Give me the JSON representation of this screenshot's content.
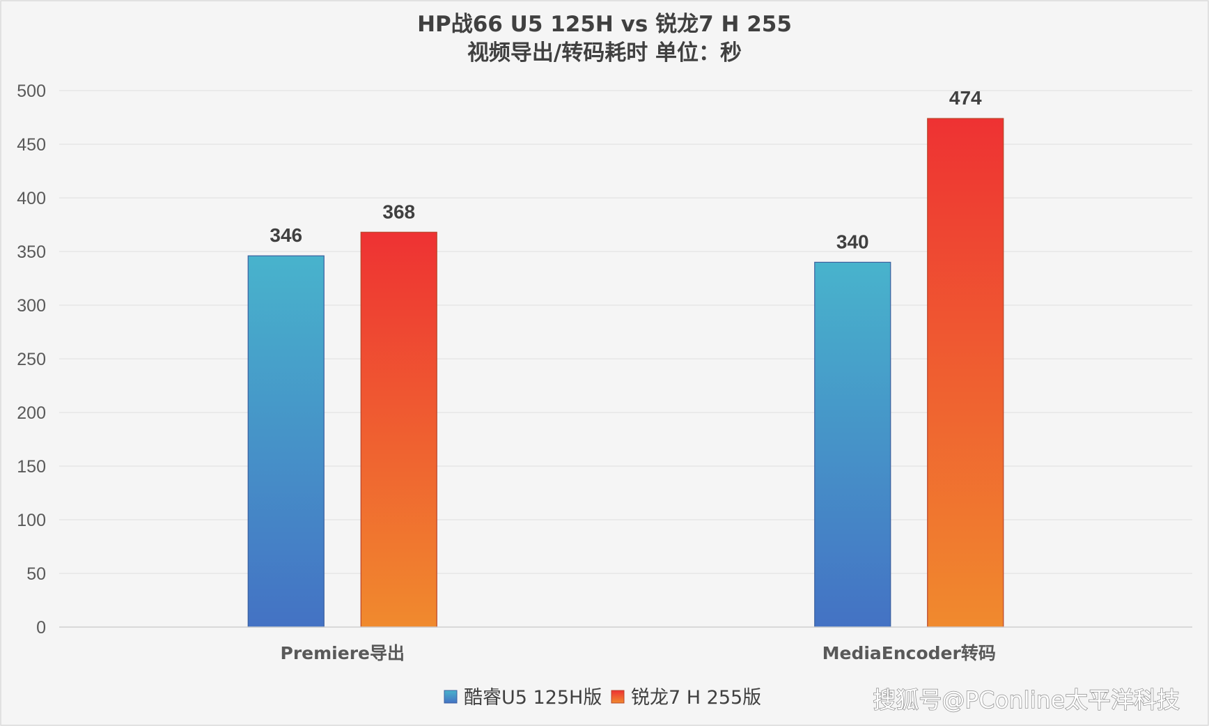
{
  "chart_data": {
    "type": "bar",
    "title": "HP战66 U5 125H vs 锐龙7 H 255",
    "subtitle": "视频导出/转码耗时 单位：秒",
    "categories": [
      "Premiere导出",
      "MediaEncoder转码"
    ],
    "series": [
      {
        "name": "酷睿U5 125H版",
        "values": [
          346,
          340
        ],
        "color_top": "#48b3cc",
        "color_bottom": "#4472c4"
      },
      {
        "name": "锐龙7 H 255版",
        "values": [
          368,
          474
        ],
        "color_top": "#ee3233",
        "color_bottom": "#f08a2e"
      }
    ],
    "y_ticks": [
      0,
      50,
      100,
      150,
      200,
      250,
      300,
      350,
      400,
      450,
      500
    ],
    "ylim": [
      0,
      500
    ],
    "grid": true,
    "legend_position": "bottom",
    "data_labels": true
  },
  "watermark": "搜狐号@PConline太平洋科技",
  "colors": {
    "background": "#f5f5f5",
    "border": "#d9d9d9",
    "gridline": "#e3e3e3",
    "axis": "#d0d0d0",
    "text": "#404040"
  }
}
